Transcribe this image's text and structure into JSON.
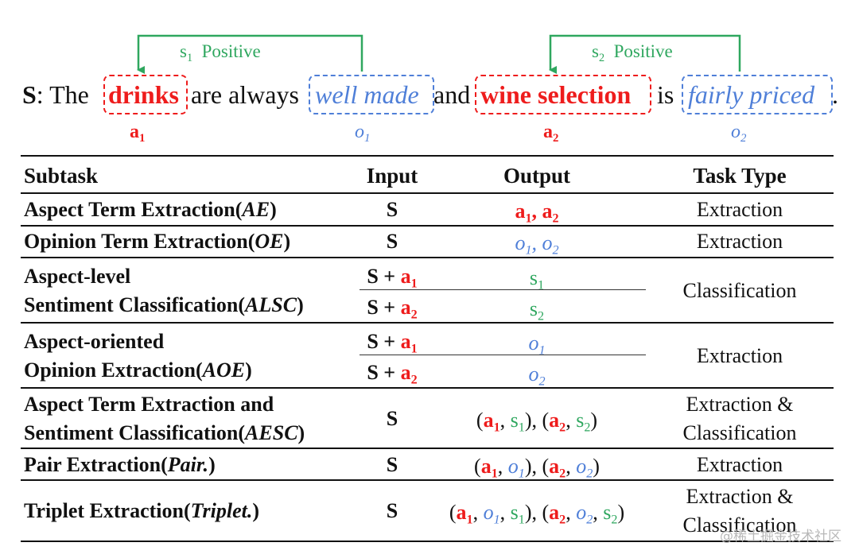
{
  "sentence": {
    "prefix_bold": "S",
    "prefix_rest": ": The",
    "aspect1": "drinks",
    "mid1": "are always",
    "opinion1": "well made",
    "mid2": "and",
    "aspect2": "wine selection",
    "mid3": "is",
    "opinion2": "fairly priced",
    "end": ".",
    "label_a": "a",
    "label_o": "o",
    "sub1": "1",
    "sub2": "2",
    "relation1": {
      "s": "s",
      "sub": "1",
      "polarity": "Positive"
    },
    "relation2": {
      "s": "s",
      "sub": "2",
      "polarity": "Positive"
    }
  },
  "table": {
    "headers": {
      "subtask": "Subtask",
      "input": "Input",
      "output": "Output",
      "task_type": "Task Type"
    },
    "rows": {
      "ae": {
        "name": "Aspect Term Extraction(",
        "abbr": "AE",
        "close": ")",
        "input": "S",
        "task_type": "Extraction"
      },
      "oe": {
        "name": "Opinion Term Extraction(",
        "abbr": "OE",
        "close": ")",
        "input": "S",
        "task_type": "Extraction"
      },
      "alsc": {
        "line1": "Aspect-level",
        "line2": "Sentiment Classification(",
        "abbr": "ALSC",
        "close": ")",
        "input": "S +",
        "task_type": "Classification"
      },
      "aoe": {
        "line1": "Aspect-oriented",
        "line2": "Opinion Extraction(",
        "abbr": "AOE",
        "close": ")",
        "input": "S +",
        "task_type": "Extraction"
      },
      "aesc": {
        "line1": "Aspect Term Extraction and",
        "line2": "Sentiment Classification(",
        "abbr": "AESC",
        "close": ")",
        "input": "S",
        "task_type_1": "Extraction &",
        "task_type_2": "Classification"
      },
      "pair": {
        "name": "Pair Extraction(",
        "abbr": "Pair.",
        "close": ")",
        "input": "S",
        "task_type": "Extraction"
      },
      "triplet": {
        "name": "Triplet Extraction(",
        "abbr": "Triplet.",
        "close": ")",
        "input": "S",
        "task_type_1": "Extraction &",
        "task_type_2": "Classification"
      }
    },
    "tokens": {
      "a": "a",
      "o": "o",
      "s": "s",
      "one": "1",
      "two": "2",
      "comma": ", ",
      "open": "(",
      "close": ")",
      "sep": "), ("
    }
  },
  "watermark": "@稀土掘金技术社区",
  "colors": {
    "aspect": "#ee1c1c",
    "opinion": "#4f7fd8",
    "sentiment": "#2fa75f",
    "text": "#111111"
  }
}
